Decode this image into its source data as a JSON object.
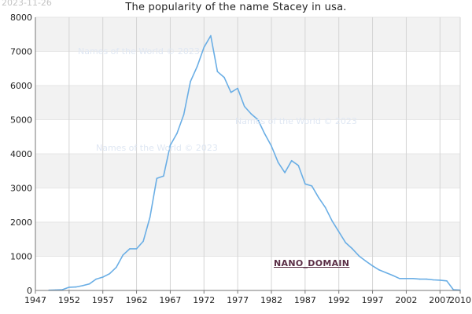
{
  "date_stamp": "2023-11-26",
  "watermarks": [
    "Names of the World © 2023",
    "Names of the World © 2023",
    "Names of the World © 2023"
  ],
  "nano_label": "NANO_DOMAIN",
  "colors": {
    "line": "#6aaee5",
    "band": "#f2f2f2",
    "grid": "#d4d4d4",
    "axis": "#777777",
    "text": "#222222"
  },
  "chart_data": {
    "type": "line",
    "title": "The popularity of the name Stacey in usa.",
    "xlabel": "",
    "ylabel": "",
    "xlim": [
      1947,
      2010
    ],
    "ylim": [
      0,
      8000
    ],
    "x_ticks": [
      "1947",
      "1952",
      "1957",
      "1962",
      "1967",
      "1972",
      "1977",
      "1982",
      "1987",
      "1992",
      "1997",
      "2002",
      "2007",
      "2010"
    ],
    "y_ticks": [
      "0",
      "1000",
      "2000",
      "3000",
      "4000",
      "5000",
      "6000",
      "7000",
      "8000"
    ],
    "grid": "horizontal bands + vertical lines",
    "series": [
      {
        "x": [
          1949,
          1950,
          1951,
          1952,
          1953,
          1954,
          1955,
          1956,
          1957,
          1958,
          1959,
          1960,
          1961,
          1962,
          1963,
          1964,
          1965,
          1966,
          1967,
          1968,
          1969,
          1970,
          1971,
          1972,
          1973,
          1974,
          1975,
          1976,
          1977,
          1978,
          1979,
          1980,
          1981,
          1982,
          1983,
          1984,
          1985,
          1986,
          1987,
          1988,
          1989,
          1990,
          1991,
          1992,
          1993,
          1994,
          1995,
          1996,
          1997,
          1998,
          1999,
          2000,
          2001,
          2002,
          2003,
          2004,
          2005,
          2006,
          2007,
          2008,
          2009,
          2010
        ],
        "values": [
          8,
          14,
          24,
          95,
          100,
          140,
          190,
          330,
          390,
          490,
          680,
          1040,
          1220,
          1220,
          1440,
          2150,
          3280,
          3350,
          4250,
          4600,
          5150,
          6120,
          6560,
          7120,
          7460,
          6410,
          6240,
          5800,
          5920,
          5390,
          5170,
          5000,
          4590,
          4230,
          3750,
          3450,
          3800,
          3660,
          3120,
          3060,
          2720,
          2430,
          2040,
          1720,
          1400,
          1220,
          1010,
          860,
          720,
          600,
          520,
          440,
          350,
          350,
          350,
          330,
          330,
          310,
          300,
          280,
          20,
          10
        ]
      }
    ]
  }
}
